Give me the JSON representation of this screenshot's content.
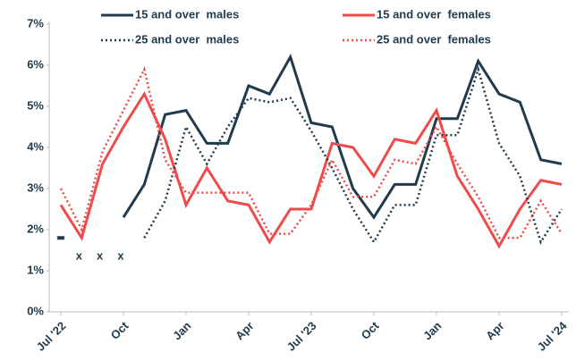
{
  "chart_data": {
    "type": "line",
    "categories": [
      "Jul '22",
      null,
      null,
      "Oct",
      null,
      null,
      "Jan",
      null,
      null,
      "Apr",
      null,
      null,
      "Jul '23",
      null,
      null,
      "Oct",
      null,
      null,
      "Jan",
      null,
      null,
      "Apr",
      null,
      null,
      "Jul '24"
    ],
    "series": [
      {
        "name": "15 and over  males",
        "color": "#1f3b4d",
        "dashed": false,
        "values": [
          1.8,
          null,
          null,
          2.3,
          3.1,
          4.8,
          4.9,
          4.1,
          4.1,
          5.5,
          5.3,
          6.2,
          4.6,
          4.5,
          3.0,
          2.3,
          3.1,
          3.1,
          4.7,
          4.7,
          6.1,
          5.3,
          5.1,
          3.7,
          3.6
        ]
      },
      {
        "name": "15 and over  females",
        "color": "#ef4b4b",
        "dashed": false,
        "values": [
          2.6,
          1.8,
          3.6,
          4.5,
          5.3,
          4.2,
          2.6,
          3.5,
          2.7,
          2.6,
          1.7,
          2.5,
          2.5,
          4.1,
          4.0,
          3.3,
          4.2,
          4.1,
          4.9,
          3.3,
          2.5,
          1.6,
          2.5,
          3.2,
          3.1
        ]
      },
      {
        "name": "25 and over  males",
        "color": "#1f3b4d",
        "dashed": true,
        "values": [
          null,
          null,
          null,
          null,
          1.8,
          2.7,
          4.5,
          3.6,
          4.5,
          5.2,
          5.1,
          5.2,
          4.4,
          3.5,
          2.5,
          1.7,
          2.6,
          2.6,
          4.3,
          4.3,
          5.9,
          4.1,
          3.3,
          1.7,
          2.5
        ]
      },
      {
        "name": "25 and over  females",
        "color": "#ef4b4b",
        "dashed": true,
        "values": [
          3.0,
          2.0,
          3.9,
          4.9,
          5.9,
          3.7,
          2.9,
          2.9,
          2.9,
          2.9,
          1.9,
          1.9,
          2.6,
          3.7,
          2.8,
          2.8,
          3.7,
          3.6,
          4.5,
          3.6,
          2.8,
          1.8,
          1.8,
          2.7,
          1.9
        ]
      }
    ],
    "annotations": [
      {
        "text": "x",
        "x": 1,
        "y": 1.35
      },
      {
        "text": "x",
        "x": 2,
        "y": 1.35
      },
      {
        "text": "x",
        "x": 3,
        "y": 1.35
      }
    ],
    "ylim": [
      0,
      7
    ],
    "yticks": [
      {
        "value": 0,
        "label": "0%"
      },
      {
        "value": 1,
        "label": "1%"
      },
      {
        "value": 2,
        "label": "2%"
      },
      {
        "value": 3,
        "label": "3%"
      },
      {
        "value": 4,
        "label": "4%"
      },
      {
        "value": 5,
        "label": "5%"
      },
      {
        "value": 6,
        "label": "6%"
      },
      {
        "value": 7,
        "label": "7%"
      }
    ],
    "grid": false
  }
}
